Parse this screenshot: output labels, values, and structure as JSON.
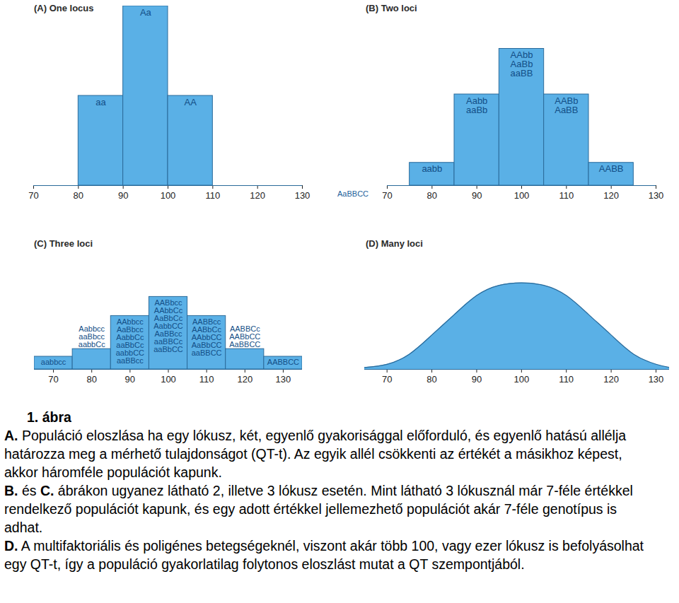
{
  "chart_data": [
    {
      "type": "histogram",
      "title": "(A) One locus",
      "bins": [
        80,
        90,
        100,
        110
      ],
      "values": [
        1,
        2,
        1
      ],
      "genotypes": [
        [
          "aa"
        ],
        [
          "Aa"
        ],
        [
          "AA"
        ]
      ],
      "xlim": [
        70,
        130
      ],
      "xticks": [
        70,
        80,
        90,
        100,
        110,
        120,
        130
      ],
      "ylim": [
        0,
        2
      ],
      "tick_labels": "x",
      "color": "#5ab0e6"
    },
    {
      "type": "histogram",
      "title": "(B) Two loci",
      "bins": [
        75,
        85,
        95,
        105,
        115,
        125
      ],
      "values": [
        1,
        4,
        6,
        4,
        1
      ],
      "genotypes": [
        [
          "aabb"
        ],
        [
          "Aabb",
          "aaBb"
        ],
        [
          "AAbb",
          "AaBb",
          "aaBB"
        ],
        [
          "AABb",
          "AaBB"
        ],
        [
          "AABB"
        ]
      ],
      "annotations": [
        "AaBBCC"
      ],
      "xlim": [
        70,
        130
      ],
      "xticks": [
        70,
        80,
        90,
        100,
        110,
        120,
        130
      ],
      "ylim": [
        0,
        8
      ],
      "tick_labels": "x",
      "color": "#5ab0e6"
    },
    {
      "type": "histogram",
      "title": "(C) Three loci",
      "bins": [
        65,
        75,
        85,
        95,
        105,
        115,
        125,
        135
      ],
      "values": [
        1,
        1.6,
        4.2,
        5.7,
        4.2,
        1.6,
        1
      ],
      "genotypes": [
        [
          "aabbcc"
        ],
        [
          "Aabbcc",
          "aaBbcc",
          "aabbCc"
        ],
        [
          "AAbbcc",
          "AaBbcc",
          "AabbCc",
          "aaBbCc",
          "aabbCC",
          "aaBBcc"
        ],
        [
          "AABbcc",
          "AAbbCc",
          "AaBbCc",
          "AabbCC",
          "AaBBcc",
          "aaBBCc",
          "aaBbCC"
        ],
        [
          "AABBcc",
          "AABbCc",
          "AAbbCC",
          "AaBbCC",
          "aaBBCC"
        ],
        [
          "AABBCc",
          "AABbCC",
          "AaBBCC"
        ],
        [
          "AABBCC"
        ]
      ],
      "xlim": [
        65,
        135
      ],
      "xticks": [
        70,
        80,
        90,
        100,
        110,
        120,
        130
      ],
      "ylim": [
        0,
        10
      ],
      "tick_labels": "x",
      "color": "#5ab0e6"
    },
    {
      "type": "area",
      "title": "(D) Many loci",
      "x": [
        65,
        70,
        75,
        80,
        85,
        90,
        95,
        100,
        105,
        110,
        115,
        120,
        125,
        130,
        133
      ],
      "values": [
        0.15,
        0.4,
        1.2,
        2.7,
        4.3,
        5.8,
        6.6,
        6.8,
        6.6,
        5.8,
        4.3,
        2.7,
        1.2,
        0.4,
        0.15
      ],
      "xlim": [
        65,
        133
      ],
      "xticks": [
        70,
        80,
        90,
        100,
        110,
        120,
        130
      ],
      "ylim": [
        0,
        10
      ],
      "tick_labels": "x",
      "color": "#5ab0e6"
    }
  ],
  "caption": {
    "title": "1. ábra",
    "paragraphs": [
      [
        {
          "text": "A.",
          "bold": true
        },
        {
          "text": " Populáció eloszlása ha egy lókusz, két, egyenlő gyakorisággal előforduló, és egyenlő hatású allélja határozza meg a mérhető tulajdonságot (QT-t). Az egyik allél csökkenti az értékét a másikhoz képest, akkor háromféle populációt kapunk."
        }
      ],
      [
        {
          "text": "B.",
          "bold": true
        },
        {
          "text": " és "
        },
        {
          "text": "C.",
          "bold": true
        },
        {
          "text": " ábrákon ugyanez látható 2, illetve 3 lókusz esetén. Mint látható 3 lókusznál már 7-féle értékkel rendelkező populációt kapunk, és egy adott értékkel jellemezhető populációt akár 7-féle genotípus is adhat."
        }
      ],
      [
        {
          "text": "D.",
          "bold": true
        },
        {
          "text": " A multifaktoriális és poligénes betegségeknél, viszont akár több 100, vagy ezer lókusz is befolyásolhat egy QT-t, így a populáció gyakorlatilag folytonos eloszlást mutat a QT szempontjából."
        }
      ]
    ]
  }
}
